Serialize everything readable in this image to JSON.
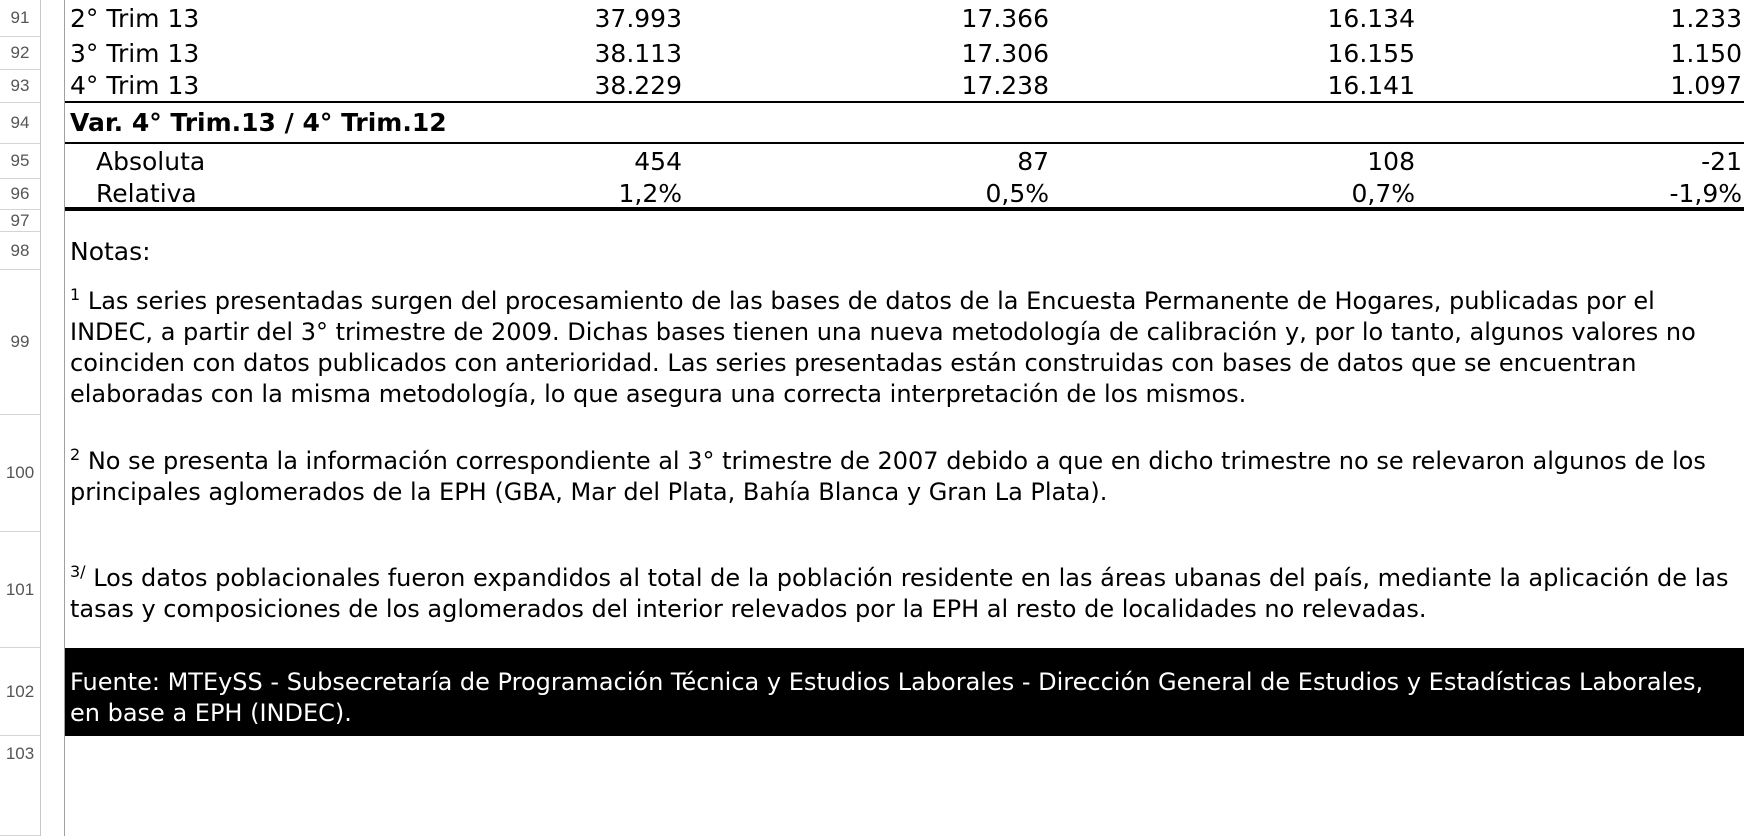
{
  "row_numbers": [
    "91",
    "92",
    "93",
    "94",
    "95",
    "96",
    "97",
    "98",
    "99",
    "100",
    "101",
    "102",
    "103"
  ],
  "quarters": [
    {
      "label": "2° Trim 13",
      "v1": "37.993",
      "v2": "17.366",
      "v3": "16.134",
      "v4": "1.233"
    },
    {
      "label": "3° Trim 13",
      "v1": "38.113",
      "v2": "17.306",
      "v3": "16.155",
      "v4": "1.150"
    },
    {
      "label": "4° Trim 13",
      "v1": "38.229",
      "v2": "17.238",
      "v3": "16.141",
      "v4": "1.097"
    }
  ],
  "variation": {
    "title": "Var. 4° Trim.13 / 4° Trim.12",
    "rows": [
      {
        "label": "Absoluta",
        "v1": "454",
        "v2": "87",
        "v3": "108",
        "v4": "-21"
      },
      {
        "label": "Relativa",
        "v1": "1,2%",
        "v2": "0,5%",
        "v3": "0,7%",
        "v4": "-1,9%"
      }
    ]
  },
  "notes": {
    "heading": "Notas:",
    "n1_mark": "1",
    "n1_text": " Las series presentadas surgen del procesamiento de las bases de datos de la Encuesta Permanente de Hogares, publicadas por el INDEC, a partir del 3° trimestre de 2009. Dichas bases tienen una nueva metodología de calibración y, por lo tanto, algunos valores no coinciden con datos publicados con anterioridad. Las series presentadas están construidas con bases de datos que se encuentran elaboradas con la misma metodología, lo que asegura una correcta interpretación de los mismos.",
    "n2_mark": "2",
    "n2_text": " No se presenta la información correspondiente al 3° trimestre de 2007 debido a que en dicho trimestre no se relevaron algunos de los principales aglomerados de la EPH (GBA, Mar del Plata, Bahía Blanca y Gran La Plata).",
    "n3_mark": "3/",
    "n3_text": " Los datos poblacionales fueron expandidos al total de la población residente en las áreas ubanas del país, mediante la aplicación de las tasas y composiciones de los aglomerados del interior relevados por la EPH al resto de localidades no relevadas."
  },
  "source": "Fuente: MTEySS - Subsecretaría de Programación Técnica y Estudios Laborales - Dirección General de Estudios y Estadísticas Laborales, en base a EPH (INDEC)."
}
